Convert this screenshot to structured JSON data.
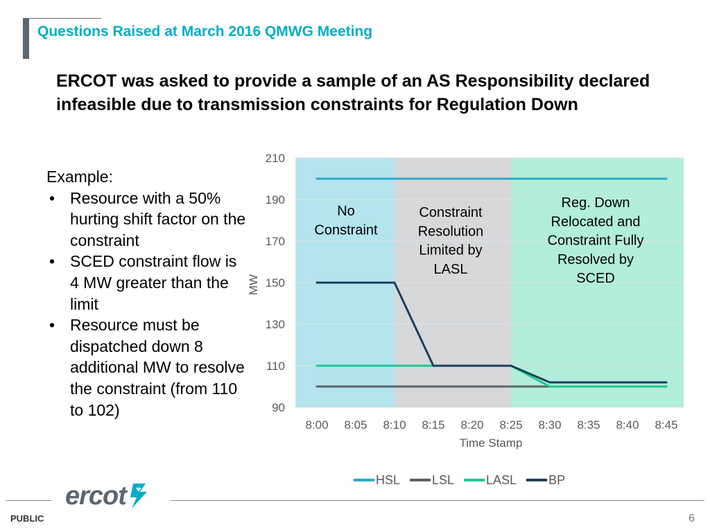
{
  "header": {
    "title": "Questions Raised at March 2016 QMWG Meeting"
  },
  "main": {
    "heading": "ERCOT was asked to provide a sample of an AS Responsibility declared infeasible due to transmission constraints for Regulation Down"
  },
  "example": {
    "title": "Example:",
    "bullets": [
      "Resource with a 50% hurting shift factor on the constraint",
      "SCED constraint flow is 4 MW greater than the limit",
      "Resource must be dispatched down 8 additional MW to resolve the constraint (from 110 to 102)"
    ]
  },
  "chart_data": {
    "type": "line",
    "title": "",
    "xlabel": "Time Stamp",
    "ylabel": "MW",
    "categories": [
      "8:00",
      "8:05",
      "8:10",
      "8:15",
      "8:20",
      "8:25",
      "8:30",
      "8:35",
      "8:40",
      "8:45"
    ],
    "ylim": [
      90,
      210
    ],
    "yticks": [
      90,
      110,
      130,
      150,
      170,
      190,
      210
    ],
    "grid": true,
    "legend_position": "bottom",
    "regions": [
      {
        "label": "No Constraint",
        "lines": [
          "No",
          "Constraint"
        ],
        "from": "start",
        "to": "8:10",
        "color": "#b4e4ee"
      },
      {
        "label": "Constraint Resolution Limited by LASL",
        "lines": [
          "Constraint",
          "Resolution",
          "Limited by",
          "LASL"
        ],
        "from": "8:10",
        "to": "8:25",
        "color": "#d6d8da"
      },
      {
        "label": "Reg. Down Relocated and Constraint Fully Resolved by SCED",
        "lines": [
          "Reg. Down",
          "Relocated and",
          "Constraint Fully",
          "Resolved by",
          "SCED"
        ],
        "from": "8:25",
        "to": "end",
        "color": "#b2eed9"
      }
    ],
    "series": [
      {
        "name": "HSL",
        "color": "#2aa9c6",
        "values": [
          200,
          200,
          200,
          200,
          200,
          200,
          200,
          200,
          200,
          200
        ]
      },
      {
        "name": "LSL",
        "color": "#596268",
        "values": [
          100,
          100,
          100,
          100,
          100,
          100,
          100,
          100,
          100,
          100
        ]
      },
      {
        "name": "LASL",
        "color": "#1ec796",
        "values": [
          110,
          110,
          110,
          110,
          110,
          110,
          100,
          100,
          100,
          100
        ]
      },
      {
        "name": "BP",
        "color": "#1a3e5c",
        "values": [
          150,
          150,
          150,
          110,
          110,
          110,
          102,
          102,
          102,
          102
        ]
      }
    ]
  },
  "footer": {
    "label": "PUBLIC",
    "page_number": "6",
    "logo_text": "ercot"
  },
  "colors": {
    "accent": "#00aeca",
    "logo": "#5b6770"
  }
}
